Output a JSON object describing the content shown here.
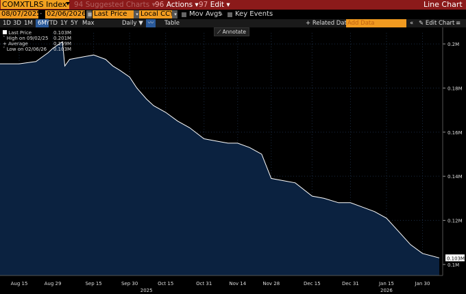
{
  "titlebar": {
    "ticker": "COMXTLRS Index",
    "suggested_num": "94",
    "suggested": "Suggested Charts",
    "actions_num": "96",
    "actions": "Actions",
    "edit_num": "97",
    "edit": "Edit",
    "chart_type": "Line Chart"
  },
  "bar2": {
    "start_date": "08/07/2025",
    "end_date": "02/06/2026",
    "field": "Last Price",
    "currency": "Local CCY",
    "mov_avgs": "Mov Avgs",
    "key_events": "Key Events"
  },
  "bar3": {
    "periods": [
      "1D",
      "3D",
      "1M",
      "6M",
      "YTD",
      "1Y",
      "5Y",
      "Max"
    ],
    "selected_period": "6M",
    "frequency": "Daily",
    "table": "Table",
    "related": "Related Dat",
    "add_data": "Add Data",
    "edit_chart": "Edit Chart"
  },
  "annotate": "Annotate",
  "legend": {
    "last_price_label": "Last Price",
    "last_price_value": "0.103M",
    "high_label": "High on 09/02/25",
    "high_value": "0.201M",
    "avg_label": "Average",
    "avg_value": "0.159M",
    "low_label": "Low on 02/06/26",
    "low_value": "0.103M"
  },
  "colors": {
    "area_fill": "#0b2240",
    "line": "#ffffff",
    "title_bar": "#8b1a1a",
    "accent": "#f09a20"
  },
  "chart_data": {
    "type": "area",
    "x": [
      "2025-08-07",
      "2025-08-15",
      "2025-08-22",
      "2025-08-27",
      "2025-08-29",
      "2025-09-02",
      "2025-09-03",
      "2025-09-05",
      "2025-09-10",
      "2025-09-15",
      "2025-09-20",
      "2025-09-23",
      "2025-09-26",
      "2025-09-30",
      "2025-10-03",
      "2025-10-07",
      "2025-10-10",
      "2025-10-15",
      "2025-10-20",
      "2025-10-25",
      "2025-10-31",
      "2025-11-05",
      "2025-11-10",
      "2025-11-14",
      "2025-11-19",
      "2025-11-24",
      "2025-11-28",
      "2025-12-03",
      "2025-12-08",
      "2025-12-15",
      "2025-12-20",
      "2025-12-26",
      "2025-12-31",
      "2026-01-05",
      "2026-01-10",
      "2026-01-15",
      "2026-01-20",
      "2026-01-25",
      "2026-01-30",
      "2026-02-06"
    ],
    "series": [
      {
        "values": [
          0.191,
          0.191,
          0.192,
          0.196,
          0.198,
          0.201,
          0.19,
          0.193,
          0.194,
          0.195,
          0.193,
          0.19,
          0.188,
          0.185,
          0.18,
          0.175,
          0.172,
          0.169,
          0.165,
          0.162,
          0.157,
          0.156,
          0.155,
          0.155,
          0.153,
          0.15,
          0.139,
          0.138,
          0.137,
          0.131,
          0.13,
          0.128,
          0.128,
          0.126,
          0.124,
          0.121,
          0.115,
          0.109,
          0.105,
          0.103
        ]
      }
    ],
    "ylim": [
      0.095,
      0.205
    ],
    "yticks": [
      "0.1M",
      "0.12M",
      "0.14M",
      "0.16M",
      "0.18M",
      "0.2M"
    ],
    "yticks_values": [
      0.1,
      0.12,
      0.14,
      0.16,
      0.18,
      0.2
    ],
    "xticks": [
      "Aug 15",
      "Aug 29",
      "Sep 15",
      "Sep 30",
      "Oct 15",
      "Oct 31",
      "Nov 14",
      "Nov 28",
      "Dec 15",
      "Dec 31",
      "Jan 15",
      "Jan 30"
    ],
    "xticks_dates": [
      "2025-08-15",
      "2025-08-29",
      "2025-09-15",
      "2025-09-30",
      "2025-10-15",
      "2025-10-31",
      "2025-11-14",
      "2025-11-28",
      "2025-12-15",
      "2025-12-31",
      "2026-01-15",
      "2026-01-30"
    ],
    "years": [
      "2025",
      "2026"
    ],
    "years_dates": [
      "2025-10-07",
      "2026-01-15"
    ],
    "last_value_label": "0.103M"
  }
}
